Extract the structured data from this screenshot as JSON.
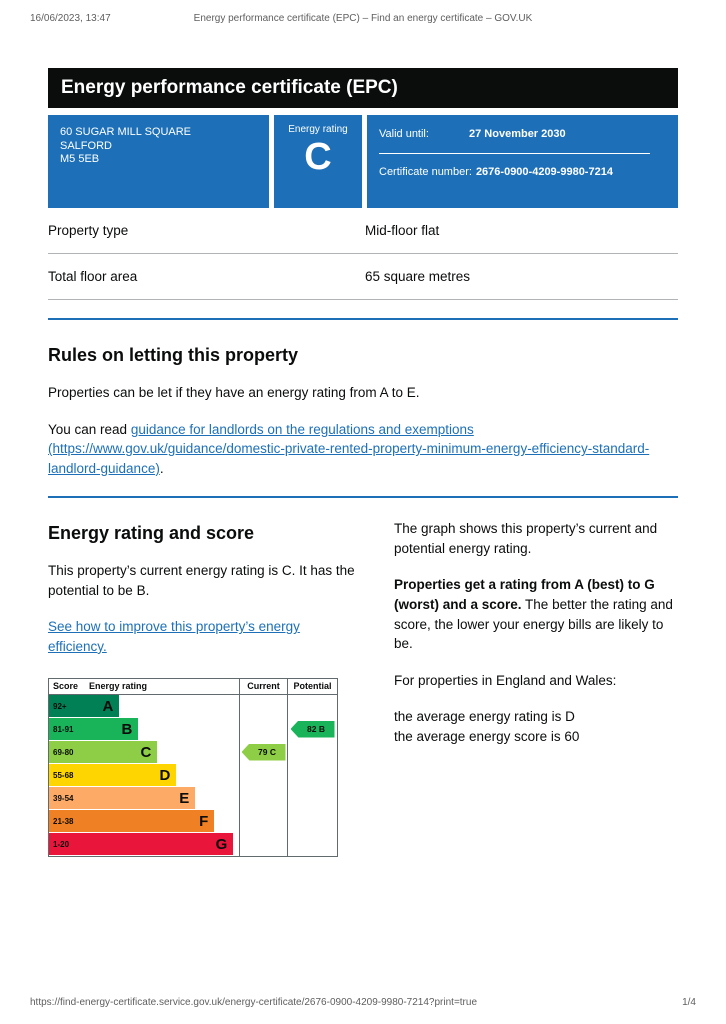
{
  "print_header": {
    "datetime": "16/06/2023, 13:47",
    "title": "Energy performance certificate (EPC) – Find an energy certificate – GOV.UK"
  },
  "print_footer": {
    "url": "https://find-energy-certificate.service.gov.uk/energy-certificate/2676-0900-4209-9980-7214?print=true",
    "page": "1/4"
  },
  "banner": {
    "title": "Energy performance certificate (EPC)",
    "address_line1": "60 SUGAR MILL SQUARE",
    "address_line2": "SALFORD",
    "address_line3": "M5 5EB",
    "rating_label": "Energy rating",
    "rating_letter": "C",
    "valid_until_label": "Valid until:",
    "valid_until_value": "27 November 2030",
    "certificate_number_label": "Certificate number:",
    "certificate_number_value": "2676-0900-4209-9980-7214",
    "accent_color": "#1d70b8"
  },
  "summary": {
    "rows": [
      {
        "label": "Property type",
        "value": "Mid-floor flat"
      },
      {
        "label": "Total floor area",
        "value": "65 square metres"
      }
    ]
  },
  "letting": {
    "heading": "Rules on letting this property",
    "paragraph1": "Properties can be let if they have an energy rating from A to E.",
    "paragraph2_prefix": "You can read ",
    "link_text": "guidance for landlords on the regulations and exemptions (https://www.gov.uk/guidance/domestic-private-rented-property-minimum-energy-efficiency-standard-landlord-guidance)",
    "paragraph2_suffix": "."
  },
  "rating_section": {
    "heading": "Energy rating and score",
    "current_text": "This property’s current energy rating is C. It has the potential to be B.",
    "improve_link": "See how to improve this property’s energy efficiency.",
    "graph_text1": "The graph shows this property’s current and potential energy rating.",
    "graph_text2_bold": "Properties get a rating from A (best) to G (worst) and a score.",
    "graph_text2_rest": " The better the rating and score, the lower your energy bills are likely to be.",
    "graph_text3": "For properties in England and Wales:",
    "avg_rating_line": "the average energy rating is D",
    "avg_score_line": "the average energy score is 60"
  },
  "chart_data": {
    "type": "bar",
    "subtype": "epc-rating-bands",
    "headers": {
      "score": "Score",
      "rating": "Energy rating",
      "current": "Current",
      "potential": "Potential"
    },
    "bands": [
      {
        "score": "92+",
        "letter": "A",
        "color": "#008054",
        "width_pct": 37
      },
      {
        "score": "81-91",
        "letter": "B",
        "color": "#19b459",
        "width_pct": 47
      },
      {
        "score": "69-80",
        "letter": "C",
        "color": "#8dce46",
        "width_pct": 57
      },
      {
        "score": "55-68",
        "letter": "D",
        "color": "#ffd500",
        "width_pct": 67
      },
      {
        "score": "39-54",
        "letter": "E",
        "color": "#fcaa65",
        "width_pct": 77
      },
      {
        "score": "21-38",
        "letter": "F",
        "color": "#ef8023",
        "width_pct": 87
      },
      {
        "score": "1-20",
        "letter": "G",
        "color": "#e9153b",
        "width_pct": 97
      }
    ],
    "current": {
      "score": 79,
      "letter": "C",
      "label": "79 C",
      "band_index": 2,
      "color": "#8dce46"
    },
    "potential": {
      "score": 82,
      "letter": "B",
      "label": "82 B",
      "band_index": 1,
      "color": "#19b459"
    }
  }
}
